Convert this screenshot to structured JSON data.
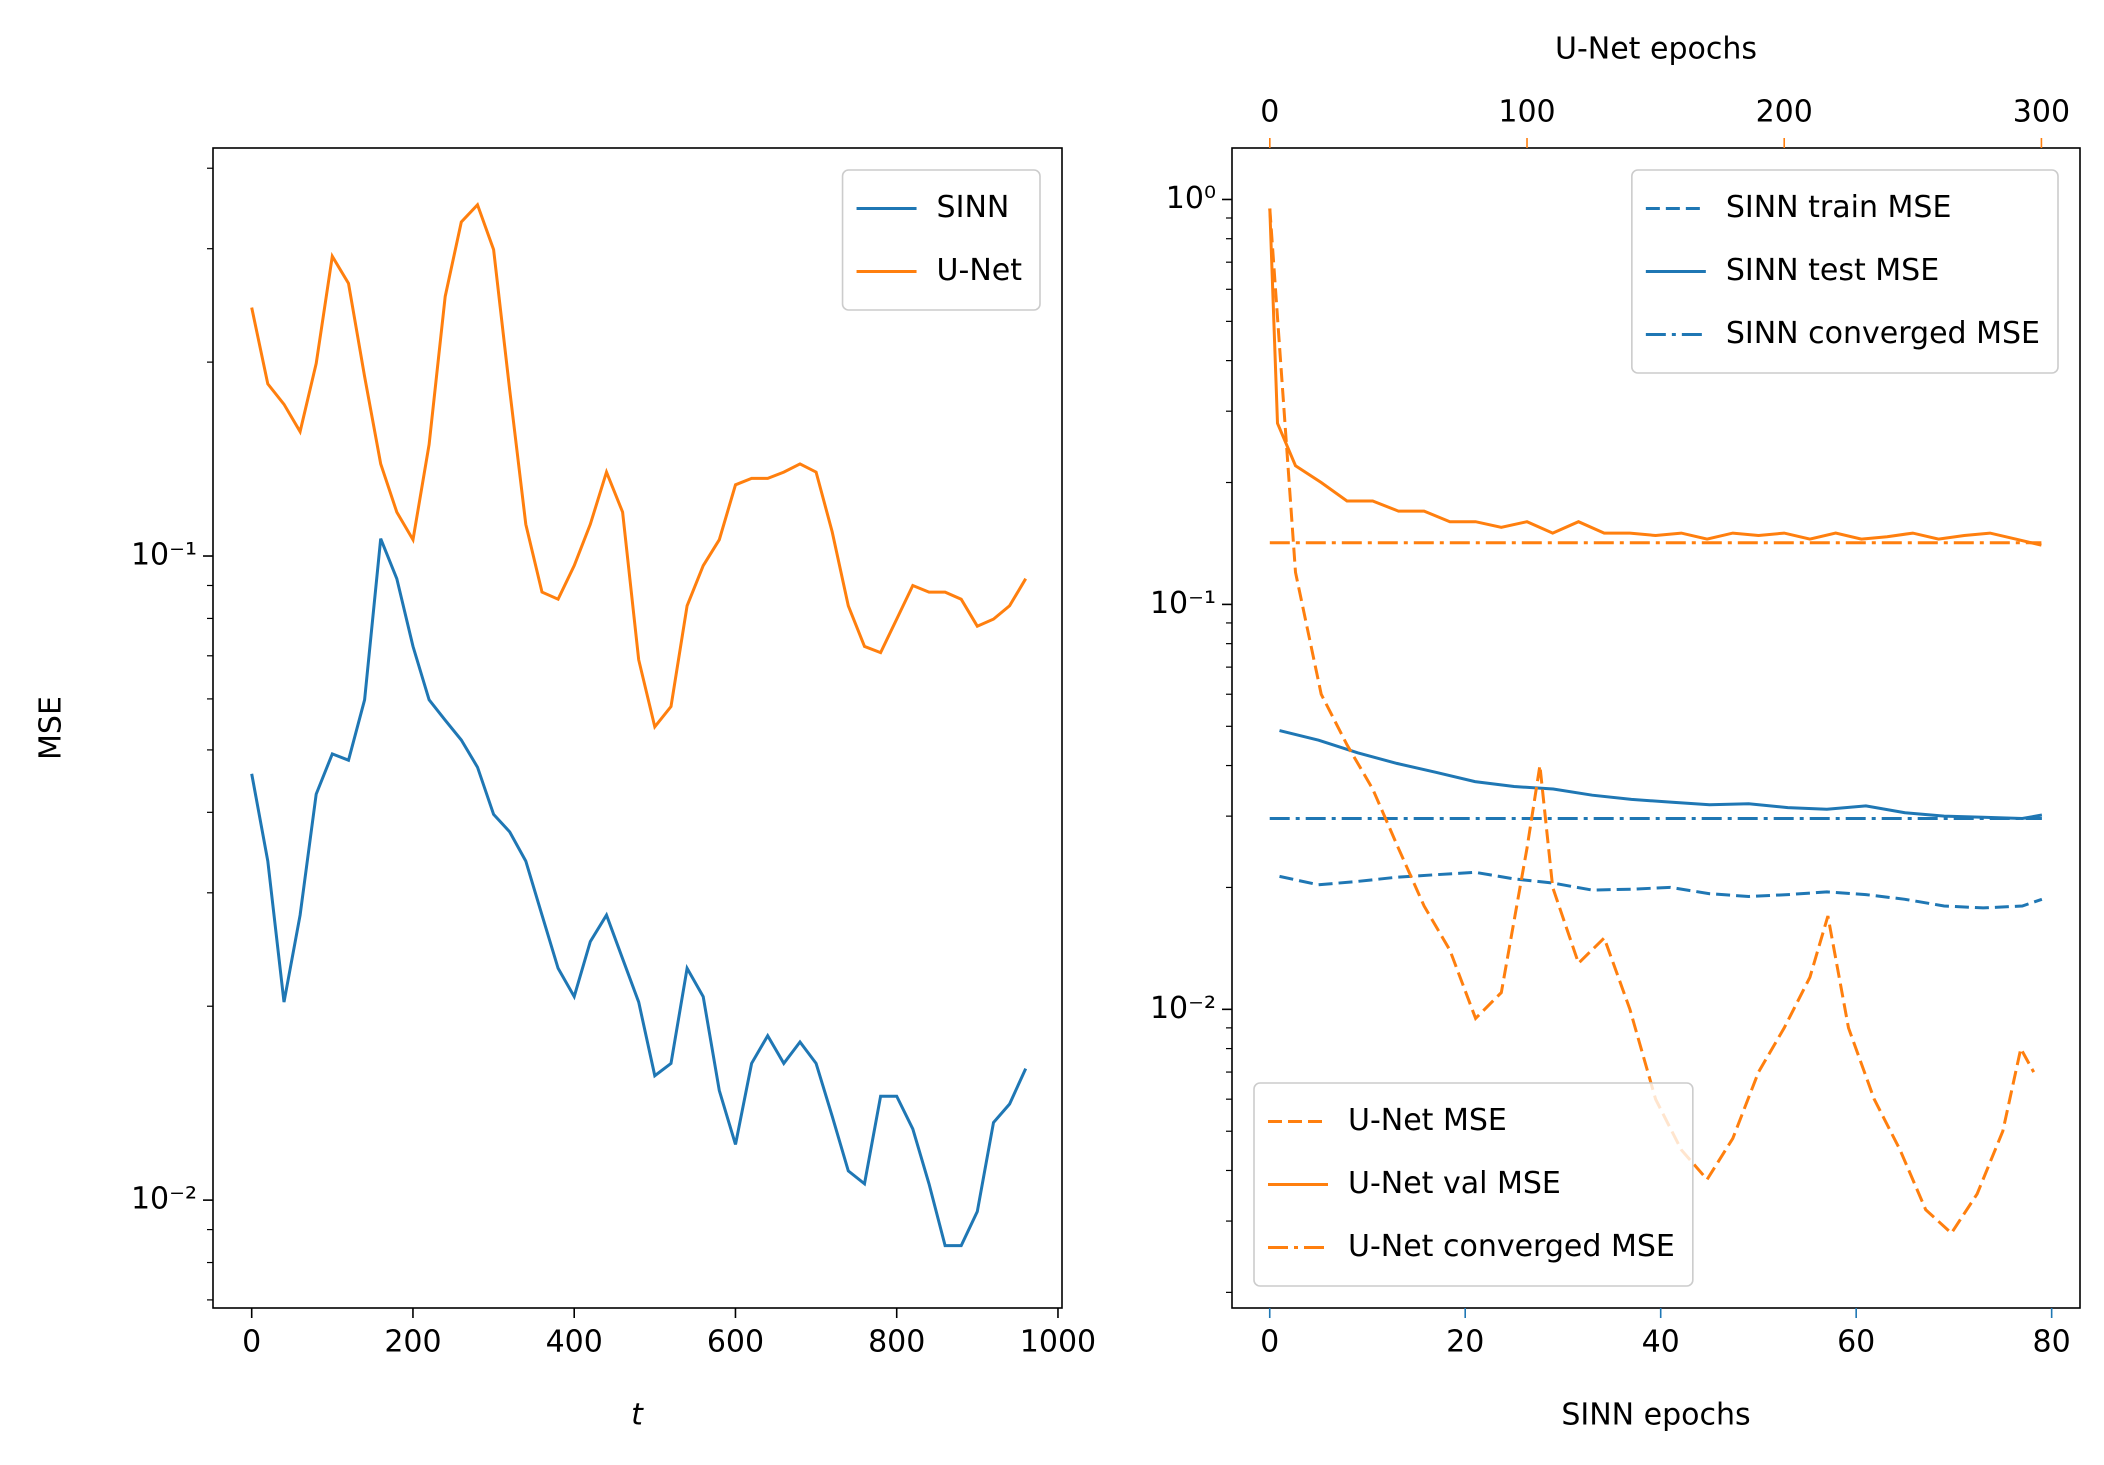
{
  "chart_data": [
    {
      "type": "line",
      "xlabel": "t",
      "ylabel": "MSE",
      "yscale": "log",
      "legend": "upper right",
      "xlim": [
        -48,
        1005
      ],
      "xticks": [
        0,
        200,
        400,
        600,
        800,
        1000
      ],
      "ylim": [
        0.0068,
        0.43
      ],
      "yticks": [
        {
          "value": 0.01,
          "label": "10⁻²"
        },
        {
          "value": 0.1,
          "label": "10⁻¹"
        }
      ],
      "yminorticks": [
        0.007,
        0.008,
        0.009,
        0.02,
        0.03,
        0.04,
        0.05,
        0.06,
        0.07,
        0.08,
        0.09,
        0.2,
        0.3,
        0.4
      ],
      "x": [
        0,
        20,
        40,
        60,
        80,
        100,
        120,
        140,
        160,
        180,
        200,
        220,
        240,
        260,
        280,
        300,
        320,
        340,
        360,
        380,
        400,
        420,
        440,
        460,
        480,
        500,
        520,
        540,
        560,
        580,
        600,
        620,
        640,
        660,
        680,
        700,
        720,
        740,
        760,
        780,
        800,
        820,
        840,
        860,
        880,
        900,
        920,
        940,
        960
      ],
      "series": [
        {
          "name": "SINN",
          "color": "#1f77b4",
          "style": "solid",
          "values": [
            0.0459,
            0.0336,
            0.0203,
            0.0277,
            0.0427,
            0.0493,
            0.0482,
            0.0598,
            0.1064,
            0.0922,
            0.0724,
            0.0598,
            0.0556,
            0.0518,
            0.047,
            0.0397,
            0.0373,
            0.0336,
            0.0277,
            0.0229,
            0.0207,
            0.0252,
            0.0277,
            0.0237,
            0.0203,
            0.0156,
            0.0163,
            0.0229,
            0.0207,
            0.0148,
            0.0122,
            0.0163,
            0.018,
            0.0163,
            0.0176,
            0.0163,
            0.0135,
            0.0111,
            0.0106,
            0.0145,
            0.0145,
            0.0129,
            0.0106,
            0.0085,
            0.0085,
            0.0096,
            0.0132,
            0.0141,
            0.016
          ]
        },
        {
          "name": "U-Net",
          "color": "#ff7f0e",
          "style": "solid",
          "values": [
            0.243,
            0.185,
            0.172,
            0.156,
            0.199,
            0.292,
            0.265,
            0.19,
            0.139,
            0.117,
            0.106,
            0.149,
            0.253,
            0.33,
            0.351,
            0.299,
            0.181,
            0.112,
            0.0879,
            0.0857,
            0.0966,
            0.112,
            0.135,
            0.117,
            0.069,
            0.0543,
            0.0584,
            0.0837,
            0.0966,
            0.106,
            0.129,
            0.132,
            0.132,
            0.135,
            0.139,
            0.135,
            0.109,
            0.0837,
            0.0724,
            0.0708,
            0.0798,
            0.09,
            0.0879,
            0.0879,
            0.0857,
            0.0778,
            0.0798,
            0.0837,
            0.0922
          ]
        }
      ]
    },
    {
      "type": "line",
      "xlabel": "SINN epochs",
      "xcolor": "#1f77b4",
      "x2label": "U-Net epochs",
      "x2color": "#ff7f0e",
      "yscale": "log",
      "xlim": [
        -3.86,
        82.9
      ],
      "xticks": [
        0,
        20,
        40,
        60,
        80
      ],
      "x2lim": [
        -14.7,
        315
      ],
      "x2ticks": [
        0,
        100,
        200,
        300
      ],
      "ylim": [
        0.00183,
        1.34
      ],
      "yticks": [
        {
          "value": 0.01,
          "label": "10⁻²"
        },
        {
          "value": 0.1,
          "label": "10⁻¹"
        },
        {
          "value": 1,
          "label": "10⁰"
        }
      ],
      "yminorticks": [
        0.002,
        0.003,
        0.004,
        0.005,
        0.006,
        0.007,
        0.008,
        0.009,
        0.02,
        0.03,
        0.04,
        0.05,
        0.06,
        0.07,
        0.08,
        0.09,
        0.2,
        0.3,
        0.4,
        0.5,
        0.6,
        0.7,
        0.8,
        0.9
      ],
      "series": [
        {
          "name": "SINN train MSE",
          "color": "#1f77b4",
          "style": "dashed",
          "legend": "upper right",
          "x": [
            1,
            5,
            9,
            13,
            17,
            21,
            25,
            29,
            33,
            37,
            41,
            45,
            49,
            53,
            57,
            61,
            65,
            69,
            73,
            77,
            79
          ],
          "values": [
            0.0213,
            0.0203,
            0.0207,
            0.0212,
            0.0215,
            0.0218,
            0.021,
            0.0205,
            0.0197,
            0.0198,
            0.02,
            0.0193,
            0.019,
            0.0192,
            0.0195,
            0.0192,
            0.0187,
            0.018,
            0.0178,
            0.018,
            0.0187
          ]
        },
        {
          "name": "SINN test MSE",
          "color": "#1f77b4",
          "style": "solid",
          "legend": "upper right",
          "x": [
            1,
            5,
            9,
            13,
            17,
            21,
            25,
            29,
            33,
            37,
            41,
            45,
            49,
            53,
            57,
            61,
            65,
            69,
            73,
            77,
            79
          ],
          "values": [
            0.0488,
            0.0462,
            0.043,
            0.0405,
            0.0385,
            0.0365,
            0.0355,
            0.035,
            0.0338,
            0.033,
            0.0325,
            0.032,
            0.0322,
            0.0315,
            0.0312,
            0.0318,
            0.0306,
            0.03,
            0.0298,
            0.0296,
            0.0302
          ]
        },
        {
          "name": "SINN converged MSE",
          "color": "#1f77b4",
          "style": "dashdot",
          "legend": "upper right",
          "x": [
            0,
            79
          ],
          "values": [
            0.0296,
            0.0296
          ]
        },
        {
          "name": "U-Net MSE",
          "color": "#ff7f0e",
          "style": "dashed",
          "legend": "lower left",
          "axis": "x2",
          "x": [
            0,
            10,
            20,
            30,
            40,
            50,
            60,
            70,
            80,
            90,
            100,
            105,
            110,
            120,
            130,
            140,
            150,
            160,
            170,
            180,
            190,
            200,
            210,
            217,
            225,
            235,
            245,
            255,
            265,
            275,
            285,
            292,
            297
          ],
          "values": [
            0.95,
            0.12,
            0.06,
            0.045,
            0.035,
            0.025,
            0.018,
            0.014,
            0.0095,
            0.011,
            0.025,
            0.04,
            0.02,
            0.013,
            0.015,
            0.01,
            0.006,
            0.0045,
            0.0038,
            0.0048,
            0.007,
            0.009,
            0.012,
            0.017,
            0.009,
            0.006,
            0.0045,
            0.0032,
            0.0028,
            0.0035,
            0.005,
            0.008,
            0.007
          ]
        },
        {
          "name": "U-Net val MSE",
          "color": "#ff7f0e",
          "style": "solid",
          "legend": "lower left",
          "axis": "x2",
          "x": [
            0,
            3,
            10,
            20,
            30,
            40,
            50,
            60,
            70,
            80,
            90,
            100,
            110,
            120,
            130,
            140,
            150,
            160,
            170,
            180,
            190,
            200,
            210,
            220,
            230,
            240,
            250,
            260,
            270,
            280,
            290,
            300
          ],
          "values": [
            0.95,
            0.28,
            0.22,
            0.2,
            0.18,
            0.18,
            0.17,
            0.17,
            0.16,
            0.16,
            0.155,
            0.16,
            0.15,
            0.16,
            0.15,
            0.15,
            0.148,
            0.15,
            0.145,
            0.15,
            0.148,
            0.15,
            0.145,
            0.15,
            0.145,
            0.147,
            0.15,
            0.145,
            0.148,
            0.15,
            0.145,
            0.14
          ]
        },
        {
          "name": "U-Net converged MSE",
          "color": "#ff7f0e",
          "style": "dashdot",
          "legend": "lower left",
          "axis": "x2",
          "x": [
            0,
            300
          ],
          "values": [
            0.142,
            0.142
          ]
        }
      ]
    }
  ]
}
